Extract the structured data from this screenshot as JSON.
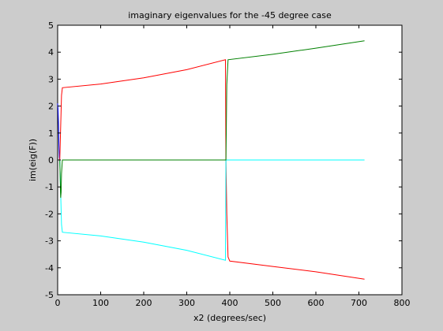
{
  "chart_data": {
    "type": "line",
    "title": "imaginary eigenvalues for the -45 degree case",
    "xlabel": "x2 (degrees/sec)",
    "ylabel": "im(eig(F))",
    "xlim": [
      0,
      800
    ],
    "ylim": [
      -5,
      5
    ],
    "xticks": [
      "0",
      "100",
      "200",
      "300",
      "400",
      "500",
      "600",
      "700",
      "800"
    ],
    "yticks": [
      "-5",
      "-4",
      "-3",
      "-2",
      "-1",
      "0",
      "1",
      "2",
      "3",
      "4",
      "5"
    ],
    "grid": false,
    "background": "#cccccc",
    "plot_background": "#ffffff",
    "series": [
      {
        "color": "#0000ff",
        "points": [
          [
            0,
            2.1
          ],
          [
            1,
            1.9
          ],
          [
            2,
            1.3
          ],
          [
            3,
            0.6
          ],
          [
            4,
            0.1
          ],
          [
            5,
            0
          ]
        ]
      },
      {
        "color": "#ff0000",
        "points": [
          [
            5,
            0
          ],
          [
            7,
            1.2
          ],
          [
            9,
            2.4
          ],
          [
            11,
            2.68
          ],
          [
            100,
            2.82
          ],
          [
            200,
            3.05
          ],
          [
            300,
            3.35
          ],
          [
            390,
            3.72
          ],
          [
            391,
            0
          ],
          [
            393,
            -2.0
          ],
          [
            396,
            -3.6
          ],
          [
            400,
            -3.75
          ],
          [
            500,
            -3.95
          ],
          [
            600,
            -4.15
          ],
          [
            713,
            -4.42
          ]
        ]
      },
      {
        "color": "#00ffff",
        "points": [
          [
            5,
            0
          ],
          [
            7,
            -1.2
          ],
          [
            9,
            -2.4
          ],
          [
            11,
            -2.68
          ],
          [
            100,
            -2.82
          ],
          [
            200,
            -3.05
          ],
          [
            300,
            -3.35
          ],
          [
            390,
            -3.72
          ],
          [
            391,
            0
          ],
          [
            713,
            0
          ]
        ]
      },
      {
        "color": "#008000",
        "points": [
          [
            5,
            0
          ],
          [
            6,
            -0.8
          ],
          [
            7,
            -1.4
          ],
          [
            8,
            -1.2
          ],
          [
            9,
            -0.5
          ],
          [
            11,
            0
          ],
          [
            391,
            0
          ],
          [
            392,
            1.2
          ],
          [
            393,
            2.8
          ],
          [
            396,
            3.72
          ],
          [
            500,
            3.92
          ],
          [
            600,
            4.15
          ],
          [
            713,
            4.42
          ]
        ]
      }
    ]
  }
}
